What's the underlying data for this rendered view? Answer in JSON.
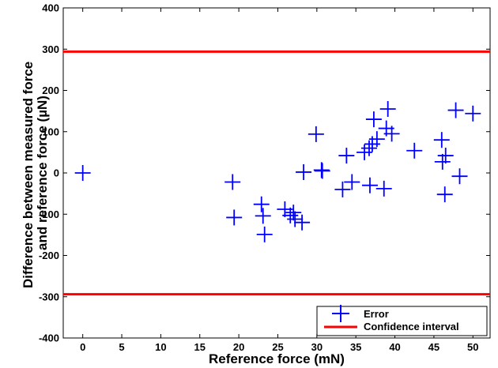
{
  "chart_data": {
    "type": "scatter",
    "xlabel": "Reference force (mN)",
    "ylabel_lines": [
      "Difference between measured force",
      "and reference force (µN)"
    ],
    "xlim": [
      -2.5,
      52.2
    ],
    "ylim": [
      -400,
      400
    ],
    "x_ticks": [
      0,
      5,
      10,
      15,
      20,
      25,
      30,
      35,
      40,
      45,
      50
    ],
    "y_ticks": [
      -400,
      -300,
      -200,
      -100,
      0,
      100,
      200,
      300,
      400
    ],
    "grid": false,
    "legend_position": "bottom-right",
    "series": [
      {
        "name": "Error",
        "marker": "plus",
        "color": "#0000ff",
        "points": [
          [
            0,
            0
          ],
          [
            19.2,
            -22
          ],
          [
            19.4,
            -108
          ],
          [
            22.9,
            -76
          ],
          [
            23.1,
            -104
          ],
          [
            23.3,
            -149
          ],
          [
            25.9,
            -88
          ],
          [
            26.6,
            -103
          ],
          [
            27.0,
            -96
          ],
          [
            27.2,
            -112
          ],
          [
            28.1,
            -120
          ],
          [
            28.3,
            2
          ],
          [
            29.9,
            94
          ],
          [
            30.6,
            7
          ],
          [
            30.7,
            5
          ],
          [
            33.3,
            -40
          ],
          [
            33.8,
            42
          ],
          [
            34.5,
            -22
          ],
          [
            36.1,
            50
          ],
          [
            36.7,
            60
          ],
          [
            36.8,
            -30
          ],
          [
            37.1,
            70
          ],
          [
            37.3,
            130
          ],
          [
            37.7,
            82
          ],
          [
            38.6,
            -38
          ],
          [
            38.9,
            108
          ],
          [
            39.1,
            155
          ],
          [
            39.6,
            95
          ],
          [
            42.5,
            54
          ],
          [
            46.0,
            80
          ],
          [
            46.1,
            27
          ],
          [
            46.4,
            -52
          ],
          [
            46.5,
            42
          ],
          [
            47.8,
            152
          ],
          [
            48.3,
            -8
          ],
          [
            50.0,
            144
          ]
        ]
      },
      {
        "name": "Confidence interval",
        "type": "hline",
        "color": "#ff0000",
        "values": [
          294,
          -294
        ]
      }
    ]
  }
}
